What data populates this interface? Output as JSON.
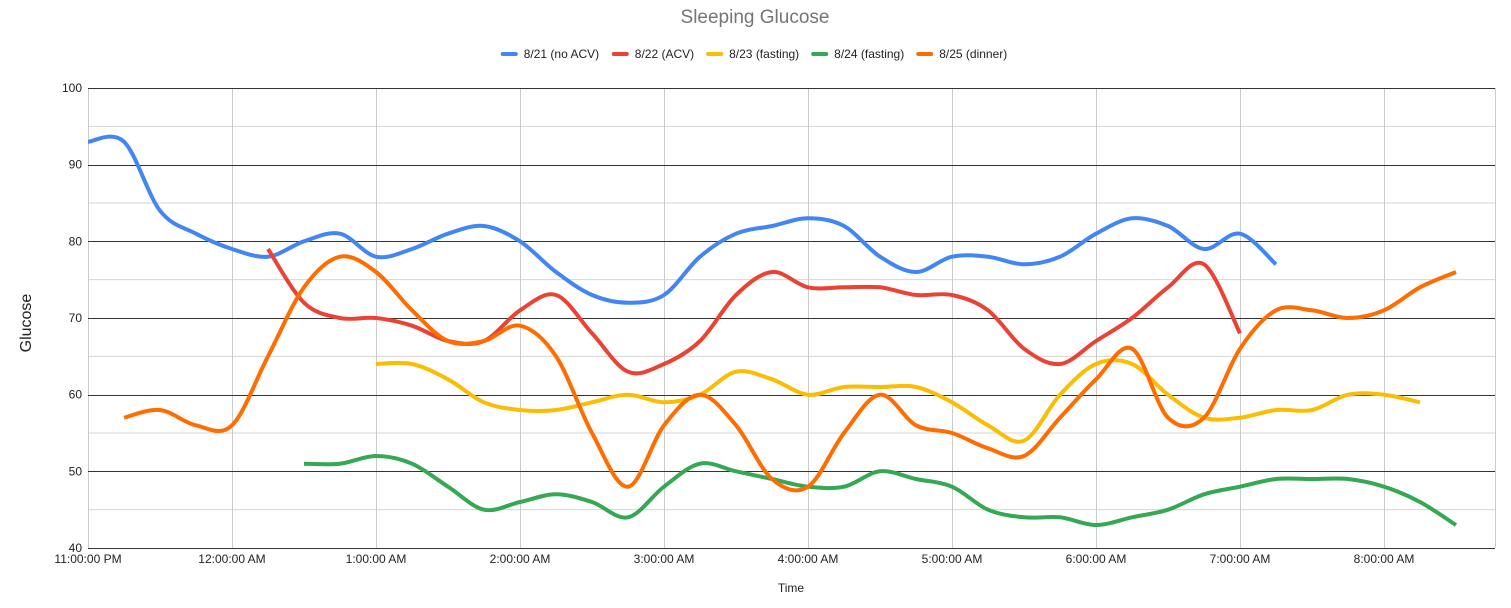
{
  "chart_data": {
    "type": "line",
    "title": "Sleeping Glucose",
    "xlabel": "Time",
    "ylabel": "Glucose",
    "x_range": [
      "11:00:00 PM",
      "8:30:00 AM"
    ],
    "x_ticks": [
      "11:00:00 PM",
      "12:00:00 AM",
      "1:00:00 AM",
      "2:00:00 AM",
      "3:00:00 AM",
      "4:00:00 AM",
      "5:00:00 AM",
      "6:00:00 AM",
      "7:00:00 AM",
      "8:00:00 AM"
    ],
    "ylim": [
      40,
      100
    ],
    "y_ticks": [
      40,
      50,
      60,
      70,
      80,
      90,
      100
    ],
    "grid": true,
    "legend_position": "top",
    "smooth": true,
    "series": [
      {
        "name": "8/21 (no ACV)",
        "color": "#4285f4",
        "points": [
          [
            "11:00:00 PM",
            93
          ],
          [
            "11:15:00 PM",
            93
          ],
          [
            "11:30:00 PM",
            84
          ],
          [
            "11:45:00 PM",
            81
          ],
          [
            "12:00:00 AM",
            79
          ],
          [
            "12:15:00 AM",
            78
          ],
          [
            "12:30:00 AM",
            80
          ],
          [
            "12:45:00 AM",
            81
          ],
          [
            "1:00:00 AM",
            78
          ],
          [
            "1:15:00 AM",
            79
          ],
          [
            "1:30:00 AM",
            81
          ],
          [
            "1:45:00 AM",
            82
          ],
          [
            "2:00:00 AM",
            80
          ],
          [
            "2:15:00 AM",
            76
          ],
          [
            "2:30:00 AM",
            73
          ],
          [
            "2:45:00 AM",
            72
          ],
          [
            "3:00:00 AM",
            73
          ],
          [
            "3:15:00 AM",
            78
          ],
          [
            "3:30:00 AM",
            81
          ],
          [
            "3:45:00 AM",
            82
          ],
          [
            "4:00:00 AM",
            83
          ],
          [
            "4:15:00 AM",
            82
          ],
          [
            "4:30:00 AM",
            78
          ],
          [
            "4:45:00 AM",
            76
          ],
          [
            "5:00:00 AM",
            78
          ],
          [
            "5:15:00 AM",
            78
          ],
          [
            "5:30:00 AM",
            77
          ],
          [
            "5:45:00 AM",
            78
          ],
          [
            "6:00:00 AM",
            81
          ],
          [
            "6:15:00 AM",
            83
          ],
          [
            "6:30:00 AM",
            82
          ],
          [
            "6:45:00 AM",
            79
          ],
          [
            "7:00:00 AM",
            81
          ],
          [
            "7:15:00 AM",
            77
          ]
        ]
      },
      {
        "name": "8/22 (ACV)",
        "color": "#ea4335",
        "points": [
          [
            "12:15:00 AM",
            79
          ],
          [
            "12:30:00 AM",
            72
          ],
          [
            "12:45:00 AM",
            70
          ],
          [
            "1:00:00 AM",
            70
          ],
          [
            "1:15:00 AM",
            69
          ],
          [
            "1:30:00 AM",
            67
          ],
          [
            "1:45:00 AM",
            67
          ],
          [
            "2:00:00 AM",
            71
          ],
          [
            "2:15:00 AM",
            73
          ],
          [
            "2:30:00 AM",
            68
          ],
          [
            "2:45:00 AM",
            63
          ],
          [
            "3:00:00 AM",
            64
          ],
          [
            "3:15:00 AM",
            67
          ],
          [
            "3:30:00 AM",
            73
          ],
          [
            "3:45:00 AM",
            76
          ],
          [
            "4:00:00 AM",
            74
          ],
          [
            "4:15:00 AM",
            74
          ],
          [
            "4:30:00 AM",
            74
          ],
          [
            "4:45:00 AM",
            73
          ],
          [
            "5:00:00 AM",
            73
          ],
          [
            "5:15:00 AM",
            71
          ],
          [
            "5:30:00 AM",
            66
          ],
          [
            "5:45:00 AM",
            64
          ],
          [
            "6:00:00 AM",
            67
          ],
          [
            "6:15:00 AM",
            70
          ],
          [
            "6:30:00 AM",
            74
          ],
          [
            "6:45:00 AM",
            77
          ],
          [
            "7:00:00 AM",
            68
          ]
        ]
      },
      {
        "name": "8/23 (fasting)",
        "color": "#fbbc04",
        "points": [
          [
            "1:00:00 AM",
            64
          ],
          [
            "1:15:00 AM",
            64
          ],
          [
            "1:30:00 AM",
            62
          ],
          [
            "1:45:00 AM",
            59
          ],
          [
            "2:00:00 AM",
            58
          ],
          [
            "2:15:00 AM",
            58
          ],
          [
            "2:30:00 AM",
            59
          ],
          [
            "2:45:00 AM",
            60
          ],
          [
            "3:00:00 AM",
            59
          ],
          [
            "3:15:00 AM",
            60
          ],
          [
            "3:30:00 AM",
            63
          ],
          [
            "3:45:00 AM",
            62
          ],
          [
            "4:00:00 AM",
            60
          ],
          [
            "4:15:00 AM",
            61
          ],
          [
            "4:30:00 AM",
            61
          ],
          [
            "4:45:00 AM",
            61
          ],
          [
            "5:00:00 AM",
            59
          ],
          [
            "5:15:00 AM",
            56
          ],
          [
            "5:30:00 AM",
            54
          ],
          [
            "5:45:00 AM",
            60
          ],
          [
            "6:00:00 AM",
            64
          ],
          [
            "6:15:00 AM",
            64
          ],
          [
            "6:30:00 AM",
            60
          ],
          [
            "6:45:00 AM",
            57
          ],
          [
            "7:00:00 AM",
            57
          ],
          [
            "7:15:00 AM",
            58
          ],
          [
            "7:30:00 AM",
            58
          ],
          [
            "7:45:00 AM",
            60
          ],
          [
            "8:00:00 AM",
            60
          ],
          [
            "8:15:00 AM",
            59
          ]
        ]
      },
      {
        "name": "8/24 (fasting)",
        "color": "#34a853",
        "points": [
          [
            "12:30:00 AM",
            51
          ],
          [
            "12:45:00 AM",
            51
          ],
          [
            "1:00:00 AM",
            52
          ],
          [
            "1:15:00 AM",
            51
          ],
          [
            "1:30:00 AM",
            48
          ],
          [
            "1:45:00 AM",
            45
          ],
          [
            "2:00:00 AM",
            46
          ],
          [
            "2:15:00 AM",
            47
          ],
          [
            "2:30:00 AM",
            46
          ],
          [
            "2:45:00 AM",
            44
          ],
          [
            "3:00:00 AM",
            48
          ],
          [
            "3:15:00 AM",
            51
          ],
          [
            "3:30:00 AM",
            50
          ],
          [
            "3:45:00 AM",
            49
          ],
          [
            "4:00:00 AM",
            48
          ],
          [
            "4:15:00 AM",
            48
          ],
          [
            "4:30:00 AM",
            50
          ],
          [
            "4:45:00 AM",
            49
          ],
          [
            "5:00:00 AM",
            48
          ],
          [
            "5:15:00 AM",
            45
          ],
          [
            "5:30:00 AM",
            44
          ],
          [
            "5:45:00 AM",
            44
          ],
          [
            "6:00:00 AM",
            43
          ],
          [
            "6:15:00 AM",
            44
          ],
          [
            "6:30:00 AM",
            45
          ],
          [
            "6:45:00 AM",
            47
          ],
          [
            "7:00:00 AM",
            48
          ],
          [
            "7:15:00 AM",
            49
          ],
          [
            "7:30:00 AM",
            49
          ],
          [
            "7:45:00 AM",
            49
          ],
          [
            "8:00:00 AM",
            48
          ],
          [
            "8:15:00 AM",
            46
          ],
          [
            "8:30:00 AM",
            43
          ]
        ]
      },
      {
        "name": "8/25 (dinner)",
        "color": "#ff6d01",
        "points": [
          [
            "11:15:00 PM",
            57
          ],
          [
            "11:30:00 PM",
            58
          ],
          [
            "11:45:00 PM",
            56
          ],
          [
            "12:00:00 AM",
            56
          ],
          [
            "12:15:00 AM",
            65
          ],
          [
            "12:30:00 AM",
            74
          ],
          [
            "12:45:00 AM",
            78
          ],
          [
            "1:00:00 AM",
            76
          ],
          [
            "1:15:00 AM",
            71
          ],
          [
            "1:30:00 AM",
            67
          ],
          [
            "1:45:00 AM",
            67
          ],
          [
            "2:00:00 AM",
            69
          ],
          [
            "2:15:00 AM",
            65
          ],
          [
            "2:30:00 AM",
            55
          ],
          [
            "2:45:00 AM",
            48
          ],
          [
            "3:00:00 AM",
            56
          ],
          [
            "3:15:00 AM",
            60
          ],
          [
            "3:30:00 AM",
            56
          ],
          [
            "3:45:00 AM",
            49
          ],
          [
            "4:00:00 AM",
            48
          ],
          [
            "4:15:00 AM",
            55
          ],
          [
            "4:30:00 AM",
            60
          ],
          [
            "4:45:00 AM",
            56
          ],
          [
            "5:00:00 AM",
            55
          ],
          [
            "5:15:00 AM",
            53
          ],
          [
            "5:30:00 AM",
            52
          ],
          [
            "5:45:00 AM",
            57
          ],
          [
            "6:00:00 AM",
            62
          ],
          [
            "6:15:00 AM",
            66
          ],
          [
            "6:30:00 AM",
            57
          ],
          [
            "6:45:00 AM",
            57
          ],
          [
            "7:00:00 AM",
            66
          ],
          [
            "7:15:00 AM",
            71
          ],
          [
            "7:30:00 AM",
            71
          ],
          [
            "7:45:00 AM",
            70
          ],
          [
            "8:00:00 AM",
            71
          ],
          [
            "8:15:00 AM",
            74
          ],
          [
            "8:30:00 AM",
            76
          ]
        ]
      }
    ]
  }
}
